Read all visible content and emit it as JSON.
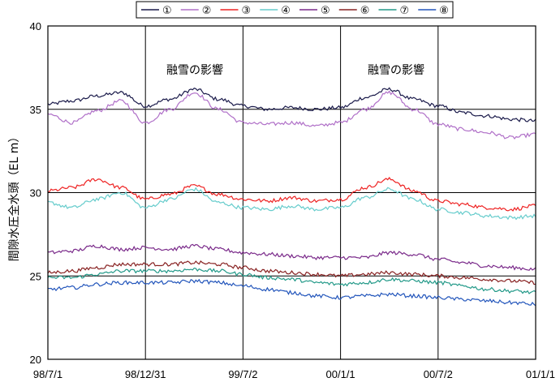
{
  "chart_data": {
    "type": "line",
    "title": "",
    "ylabel": "間隙水圧全水頭（EL m）",
    "xlabel": "",
    "ylim": [
      20,
      40
    ],
    "yticks": [
      "20",
      "25",
      "30",
      "35",
      "40"
    ],
    "xticks": [
      "98/7/1",
      "98/12/31",
      "99/7/2",
      "00/1/1",
      "00/7/2",
      "01/1/1"
    ],
    "x": [
      "98/7/1",
      "98/8/15",
      "98/9/30",
      "98/11/15",
      "98/12/31",
      "99/2/15",
      "99/4/1",
      "99/5/15",
      "99/7/2",
      "99/8/15",
      "99/9/30",
      "99/11/15",
      "00/1/1",
      "00/2/15",
      "00/4/1",
      "00/5/15",
      "00/7/2",
      "00/8/15",
      "00/9/30",
      "00/11/15",
      "01/1/1"
    ],
    "grid": true,
    "legend_position": "top",
    "annotations": [
      "融雪の影響",
      "融雪の影響"
    ],
    "series": [
      {
        "name": "①",
        "color": "#1a1a4a",
        "values": [
          35.3,
          35.5,
          35.8,
          36.0,
          35.2,
          35.6,
          36.2,
          35.6,
          35.2,
          35.0,
          35.1,
          35.0,
          35.1,
          35.7,
          36.2,
          35.6,
          35.2,
          34.8,
          34.6,
          34.4,
          34.3
        ]
      },
      {
        "name": "②",
        "color": "#b070c8",
        "values": [
          34.7,
          34.2,
          34.9,
          35.5,
          34.2,
          35.0,
          36.0,
          35.0,
          34.2,
          34.1,
          34.2,
          34.0,
          34.2,
          35.0,
          36.0,
          35.0,
          34.1,
          33.8,
          33.6,
          33.3,
          33.5
        ]
      },
      {
        "name": "③",
        "color": "#ee2222",
        "values": [
          30.1,
          30.3,
          30.8,
          30.3,
          29.6,
          29.9,
          30.4,
          29.9,
          29.6,
          29.5,
          29.7,
          29.5,
          29.6,
          30.3,
          30.8,
          30.1,
          29.5,
          29.3,
          29.1,
          29.0,
          29.2
        ]
      },
      {
        "name": "④",
        "color": "#66cccc",
        "values": [
          29.4,
          29.1,
          29.6,
          30.0,
          29.1,
          29.6,
          30.2,
          29.4,
          29.1,
          29.0,
          29.2,
          29.0,
          29.1,
          29.7,
          30.2,
          29.6,
          29.0,
          28.8,
          28.6,
          28.5,
          28.6
        ]
      },
      {
        "name": "⑤",
        "color": "#7a2a8a",
        "values": [
          26.4,
          26.5,
          26.8,
          26.6,
          26.7,
          26.6,
          26.8,
          26.6,
          26.4,
          26.3,
          26.2,
          26.1,
          26.1,
          26.1,
          26.4,
          26.3,
          26.0,
          25.8,
          25.6,
          25.5,
          25.4
        ]
      },
      {
        "name": "⑥",
        "color": "#882222",
        "values": [
          25.2,
          25.3,
          25.5,
          25.7,
          25.7,
          25.7,
          25.8,
          25.7,
          25.5,
          25.3,
          25.2,
          25.1,
          25.0,
          25.1,
          25.2,
          25.1,
          25.0,
          24.9,
          24.8,
          24.7,
          24.6
        ]
      },
      {
        "name": "⑦",
        "color": "#229988",
        "values": [
          24.9,
          24.9,
          25.1,
          25.3,
          25.3,
          25.3,
          25.4,
          25.3,
          25.1,
          24.9,
          24.8,
          24.6,
          24.5,
          24.6,
          24.8,
          24.7,
          24.6,
          24.4,
          24.2,
          24.1,
          24.0
        ]
      },
      {
        "name": "⑧",
        "color": "#2255bb",
        "values": [
          24.2,
          24.3,
          24.5,
          24.6,
          24.6,
          24.6,
          24.7,
          24.6,
          24.4,
          24.2,
          24.0,
          23.8,
          23.7,
          23.8,
          23.9,
          23.8,
          23.7,
          23.6,
          23.5,
          23.4,
          23.3
        ]
      }
    ]
  }
}
